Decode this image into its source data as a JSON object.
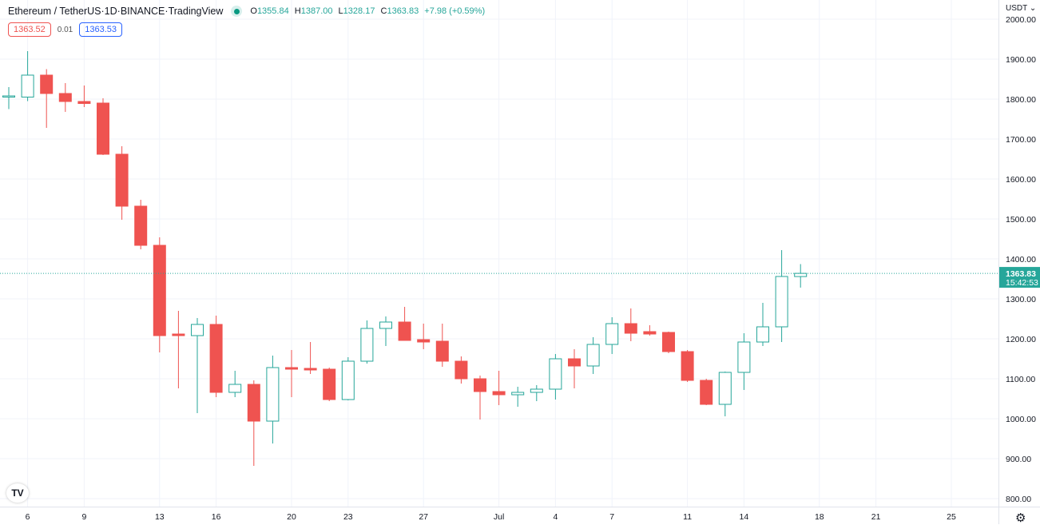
{
  "header": {
    "symbol": "Ethereum / TetherUS",
    "interval": "1D",
    "exchange": "BINANCE",
    "source": "TradingView",
    "separator": " · ",
    "ohlc": {
      "o_label": "O",
      "o": "1355.84",
      "h_label": "H",
      "h": "1387.00",
      "l_label": "L",
      "l": "1328.17",
      "c_label": "C",
      "c": "1363.83",
      "change": "+7.98 (+0.59%)"
    },
    "bid": "1363.52",
    "spread": "0.01",
    "ask": "1363.53"
  },
  "price_axis": {
    "currency": "USDT ⌄",
    "last_price": "1363.83",
    "countdown": "15:42:53"
  },
  "logo_text": "TV",
  "colors": {
    "up": "#26a69a",
    "down": "#ef5350",
    "grid": "#f0f3fa",
    "last": "#26a69a"
  },
  "chart_data": {
    "type": "candlestick",
    "title": "Ethereum / TetherUS · 1D · BINANCE",
    "ylim": [
      790,
      2000
    ],
    "y_ticks": [
      800,
      900,
      1000,
      1100,
      1200,
      1300,
      1400,
      1500,
      1600,
      1700,
      1800,
      1900,
      2000
    ],
    "y_tick_labels": [
      "800.00",
      "900.00",
      "1000.00",
      "1100.00",
      "1200.00",
      "1300.00",
      "1400.00",
      "1500.00",
      "1600.00",
      "1700.00",
      "1800.00",
      "1900.00",
      "2000.00"
    ],
    "x_ticks": [
      {
        "index": 1,
        "label": "6"
      },
      {
        "index": 4,
        "label": "9"
      },
      {
        "index": 8,
        "label": "13"
      },
      {
        "index": 11,
        "label": "16"
      },
      {
        "index": 15,
        "label": "20"
      },
      {
        "index": 18,
        "label": "23"
      },
      {
        "index": 22,
        "label": "27"
      },
      {
        "index": 26,
        "label": "Jul"
      },
      {
        "index": 29,
        "label": "4"
      },
      {
        "index": 32,
        "label": "7"
      },
      {
        "index": 36,
        "label": "11"
      },
      {
        "index": 39,
        "label": "14"
      },
      {
        "index": 43,
        "label": "18"
      },
      {
        "index": 46,
        "label": "21"
      },
      {
        "index": 50,
        "label": "25"
      }
    ],
    "last_price": 1363.83,
    "candles": [
      [
        1805,
        1830,
        1775,
        1808
      ],
      [
        1805,
        1920,
        1795,
        1860
      ],
      [
        1860,
        1875,
        1728,
        1814
      ],
      [
        1814,
        1840,
        1768,
        1794
      ],
      [
        1794,
        1834,
        1780,
        1789
      ],
      [
        1790,
        1802,
        1660,
        1662
      ],
      [
        1662,
        1682,
        1498,
        1532
      ],
      [
        1532,
        1548,
        1424,
        1434
      ],
      [
        1434,
        1454,
        1166,
        1208
      ],
      [
        1212,
        1270,
        1076,
        1208
      ],
      [
        1208,
        1252,
        1014,
        1236
      ],
      [
        1236,
        1258,
        1054,
        1066
      ],
      [
        1066,
        1120,
        1054,
        1086
      ],
      [
        1086,
        1096,
        882,
        994
      ],
      [
        994,
        1158,
        938,
        1128
      ],
      [
        1128,
        1172,
        1054,
        1124
      ],
      [
        1126,
        1192,
        1112,
        1122
      ],
      [
        1124,
        1128,
        1044,
        1048
      ],
      [
        1048,
        1154,
        1046,
        1144
      ],
      [
        1144,
        1246,
        1138,
        1226
      ],
      [
        1226,
        1256,
        1182,
        1242
      ],
      [
        1242,
        1280,
        1196,
        1196
      ],
      [
        1198,
        1238,
        1174,
        1192
      ],
      [
        1194,
        1238,
        1130,
        1144
      ],
      [
        1144,
        1156,
        1088,
        1100
      ],
      [
        1100,
        1108,
        998,
        1068
      ],
      [
        1068,
        1120,
        1034,
        1060
      ],
      [
        1060,
        1080,
        1030,
        1066
      ],
      [
        1066,
        1084,
        1044,
        1074
      ],
      [
        1074,
        1162,
        1048,
        1150
      ],
      [
        1150,
        1174,
        1076,
        1132
      ],
      [
        1132,
        1204,
        1112,
        1186
      ],
      [
        1186,
        1254,
        1162,
        1238
      ],
      [
        1238,
        1276,
        1194,
        1214
      ],
      [
        1218,
        1234,
        1208,
        1212
      ],
      [
        1216,
        1218,
        1164,
        1168
      ],
      [
        1168,
        1172,
        1092,
        1096
      ],
      [
        1096,
        1100,
        1034,
        1036
      ],
      [
        1036,
        1118,
        1006,
        1116
      ],
      [
        1116,
        1214,
        1072,
        1192
      ],
      [
        1192,
        1290,
        1182,
        1230
      ],
      [
        1230,
        1422,
        1192,
        1356
      ],
      [
        1355.84,
        1387,
        1328.17,
        1363.83
      ]
    ]
  }
}
